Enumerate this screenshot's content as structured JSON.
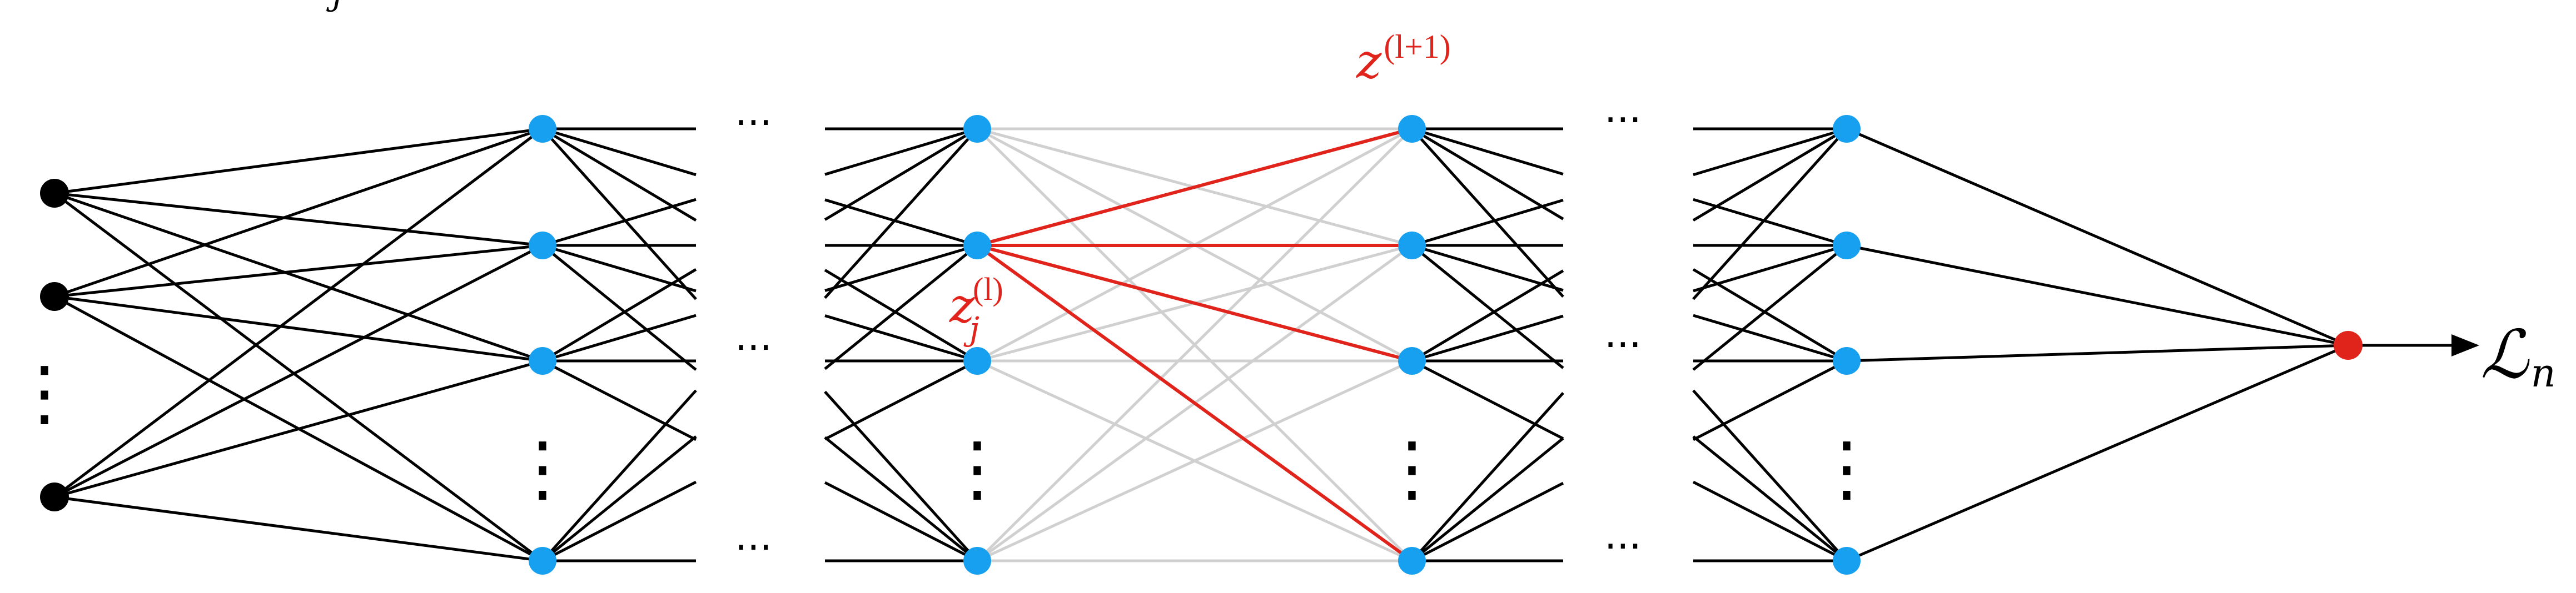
{
  "colors": {
    "edge": "#000000",
    "faded_edge": "#d0d0d0",
    "highlight": "#e0231b",
    "input_node": "#000000",
    "hidden_node": "#18a0f0",
    "output_node": "#e0231b"
  },
  "labels": {
    "z_next": "z",
    "z_next_sup": "(l+1)",
    "z_j": "z",
    "z_j_sub": "j",
    "z_j_sup": "(l)",
    "loss": "ℒ",
    "loss_sub": "n",
    "top_left_sub": "j",
    "hdots": "···",
    "vdots": "⋮"
  }
}
